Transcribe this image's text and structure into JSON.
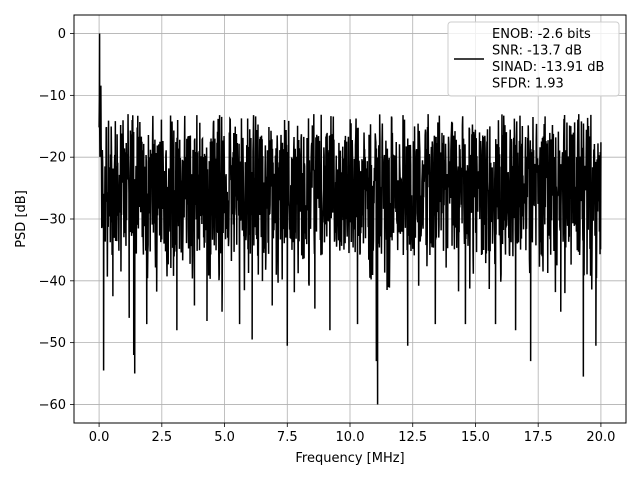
{
  "chart_data": {
    "type": "line",
    "xlabel": "Frequency [MHz]",
    "ylabel": "PSD [dB]",
    "xlim": [
      -1.0,
      21.0
    ],
    "ylim": [
      -63.0,
      3.0
    ],
    "x_ticks": [
      0.0,
      2.5,
      5.0,
      7.5,
      10.0,
      12.5,
      15.0,
      17.5,
      20.0
    ],
    "x_tick_labels": [
      "0.0",
      "2.5",
      "5.0",
      "7.5",
      "10.0",
      "12.5",
      "15.0",
      "17.5",
      "20.0"
    ],
    "y_ticks": [
      0,
      -10,
      -20,
      -30,
      -40,
      -50,
      -60
    ],
    "y_tick_labels": [
      "0",
      "−10",
      "−20",
      "−30",
      "−40",
      "−50",
      "−60"
    ],
    "grid": true,
    "legend_position": "top-right",
    "legend_lines": [
      "ENOB: -2.6 bits",
      "SNR: -13.7 dB",
      "SINAD: -13.91 dB",
      "SFDR: 1.93"
    ],
    "series_color": "#000000",
    "series": [
      {
        "x_range": [
          0.0,
          20.0
        ],
        "y_band": [
          -36,
          -16
        ],
        "peak": {
          "x": 0.02,
          "y": 0.0
        },
        "deep_dips": [
          {
            "x": 0.18,
            "y": -54.5
          },
          {
            "x": 0.55,
            "y": -42.5
          },
          {
            "x": 1.2,
            "y": -46
          },
          {
            "x": 1.38,
            "y": -52
          },
          {
            "x": 1.42,
            "y": -55
          },
          {
            "x": 1.9,
            "y": -47
          },
          {
            "x": 3.1,
            "y": -48
          },
          {
            "x": 3.8,
            "y": -44
          },
          {
            "x": 4.3,
            "y": -46.5
          },
          {
            "x": 4.9,
            "y": -45
          },
          {
            "x": 5.6,
            "y": -47
          },
          {
            "x": 6.1,
            "y": -49.5
          },
          {
            "x": 6.9,
            "y": -44
          },
          {
            "x": 7.5,
            "y": -50.5
          },
          {
            "x": 8.6,
            "y": -44.5
          },
          {
            "x": 9.2,
            "y": -48
          },
          {
            "x": 10.3,
            "y": -47
          },
          {
            "x": 11.05,
            "y": -53
          },
          {
            "x": 11.1,
            "y": -60
          },
          {
            "x": 12.3,
            "y": -50.5
          },
          {
            "x": 13.4,
            "y": -47
          },
          {
            "x": 14.6,
            "y": -47
          },
          {
            "x": 15.8,
            "y": -47
          },
          {
            "x": 16.6,
            "y": -48
          },
          {
            "x": 17.2,
            "y": -53
          },
          {
            "x": 18.4,
            "y": -45
          },
          {
            "x": 19.3,
            "y": -55.5
          },
          {
            "x": 19.8,
            "y": -50.5
          }
        ]
      }
    ]
  }
}
